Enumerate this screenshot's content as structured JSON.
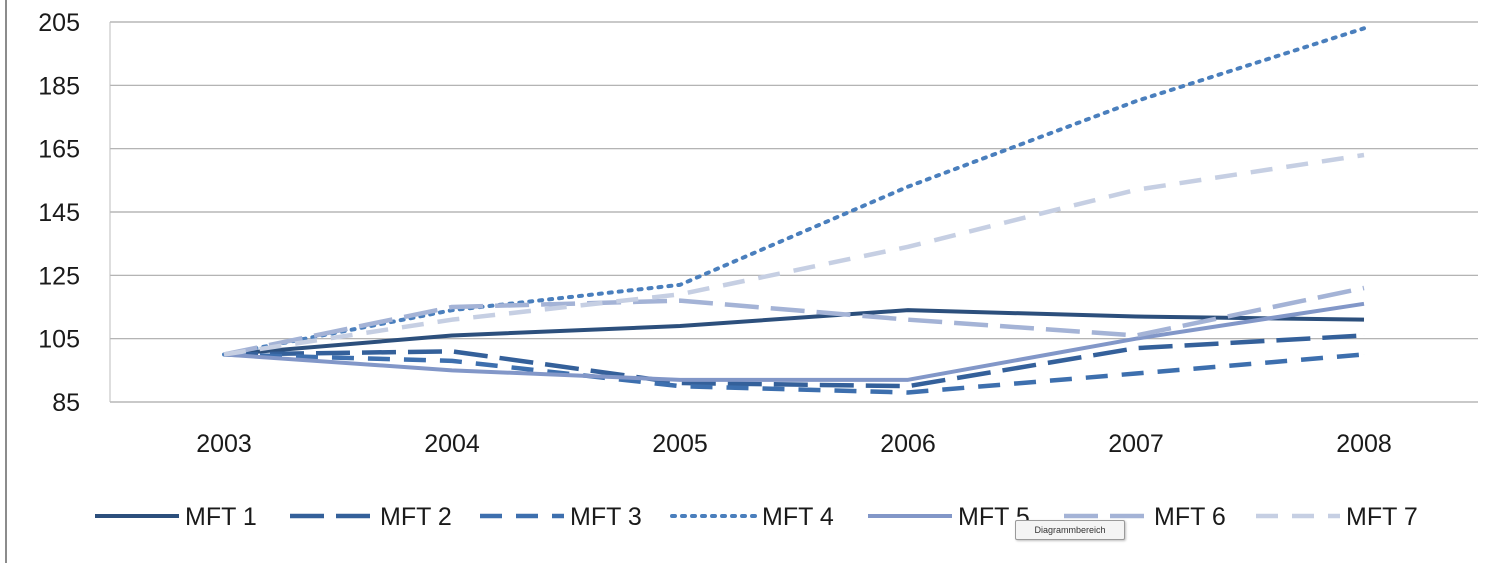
{
  "chart_data": {
    "type": "line",
    "title": "",
    "xlabel": "",
    "ylabel": "",
    "categories": [
      "2003",
      "2004",
      "2005",
      "2006",
      "2007",
      "2008"
    ],
    "ylim": [
      85,
      205
    ],
    "yticks": [
      85,
      105,
      125,
      145,
      165,
      185,
      205
    ],
    "grid": true,
    "legend": "bottom",
    "series": [
      {
        "name": "MFT 1",
        "values": [
          100,
          106,
          109,
          114,
          112,
          111
        ],
        "color": "#2c4f7c",
        "style": "solid"
      },
      {
        "name": "MFT 2",
        "values": [
          100,
          101,
          91,
          90,
          102,
          106
        ],
        "color": "#34609a",
        "style": "long-dash"
      },
      {
        "name": "MFT 3",
        "values": [
          100,
          98,
          90,
          88,
          94,
          100
        ],
        "color": "#3d6fae",
        "style": "dash"
      },
      {
        "name": "MFT 4",
        "values": [
          100,
          114,
          122,
          153,
          180,
          203
        ],
        "color": "#4a7fbd",
        "style": "dot"
      },
      {
        "name": "MFT 5",
        "values": [
          100,
          95,
          92,
          92,
          105,
          116
        ],
        "color": "#8297c8",
        "style": "solid"
      },
      {
        "name": "MFT 6",
        "values": [
          100,
          115,
          117,
          111,
          106,
          121
        ],
        "color": "#a4b3d6",
        "style": "long-dash"
      },
      {
        "name": "MFT 7",
        "values": [
          100,
          111,
          119,
          134,
          152,
          163
        ],
        "color": "#c6cfe3",
        "style": "dash"
      }
    ]
  },
  "tooltip": {
    "label": "Diagrammbereich"
  }
}
